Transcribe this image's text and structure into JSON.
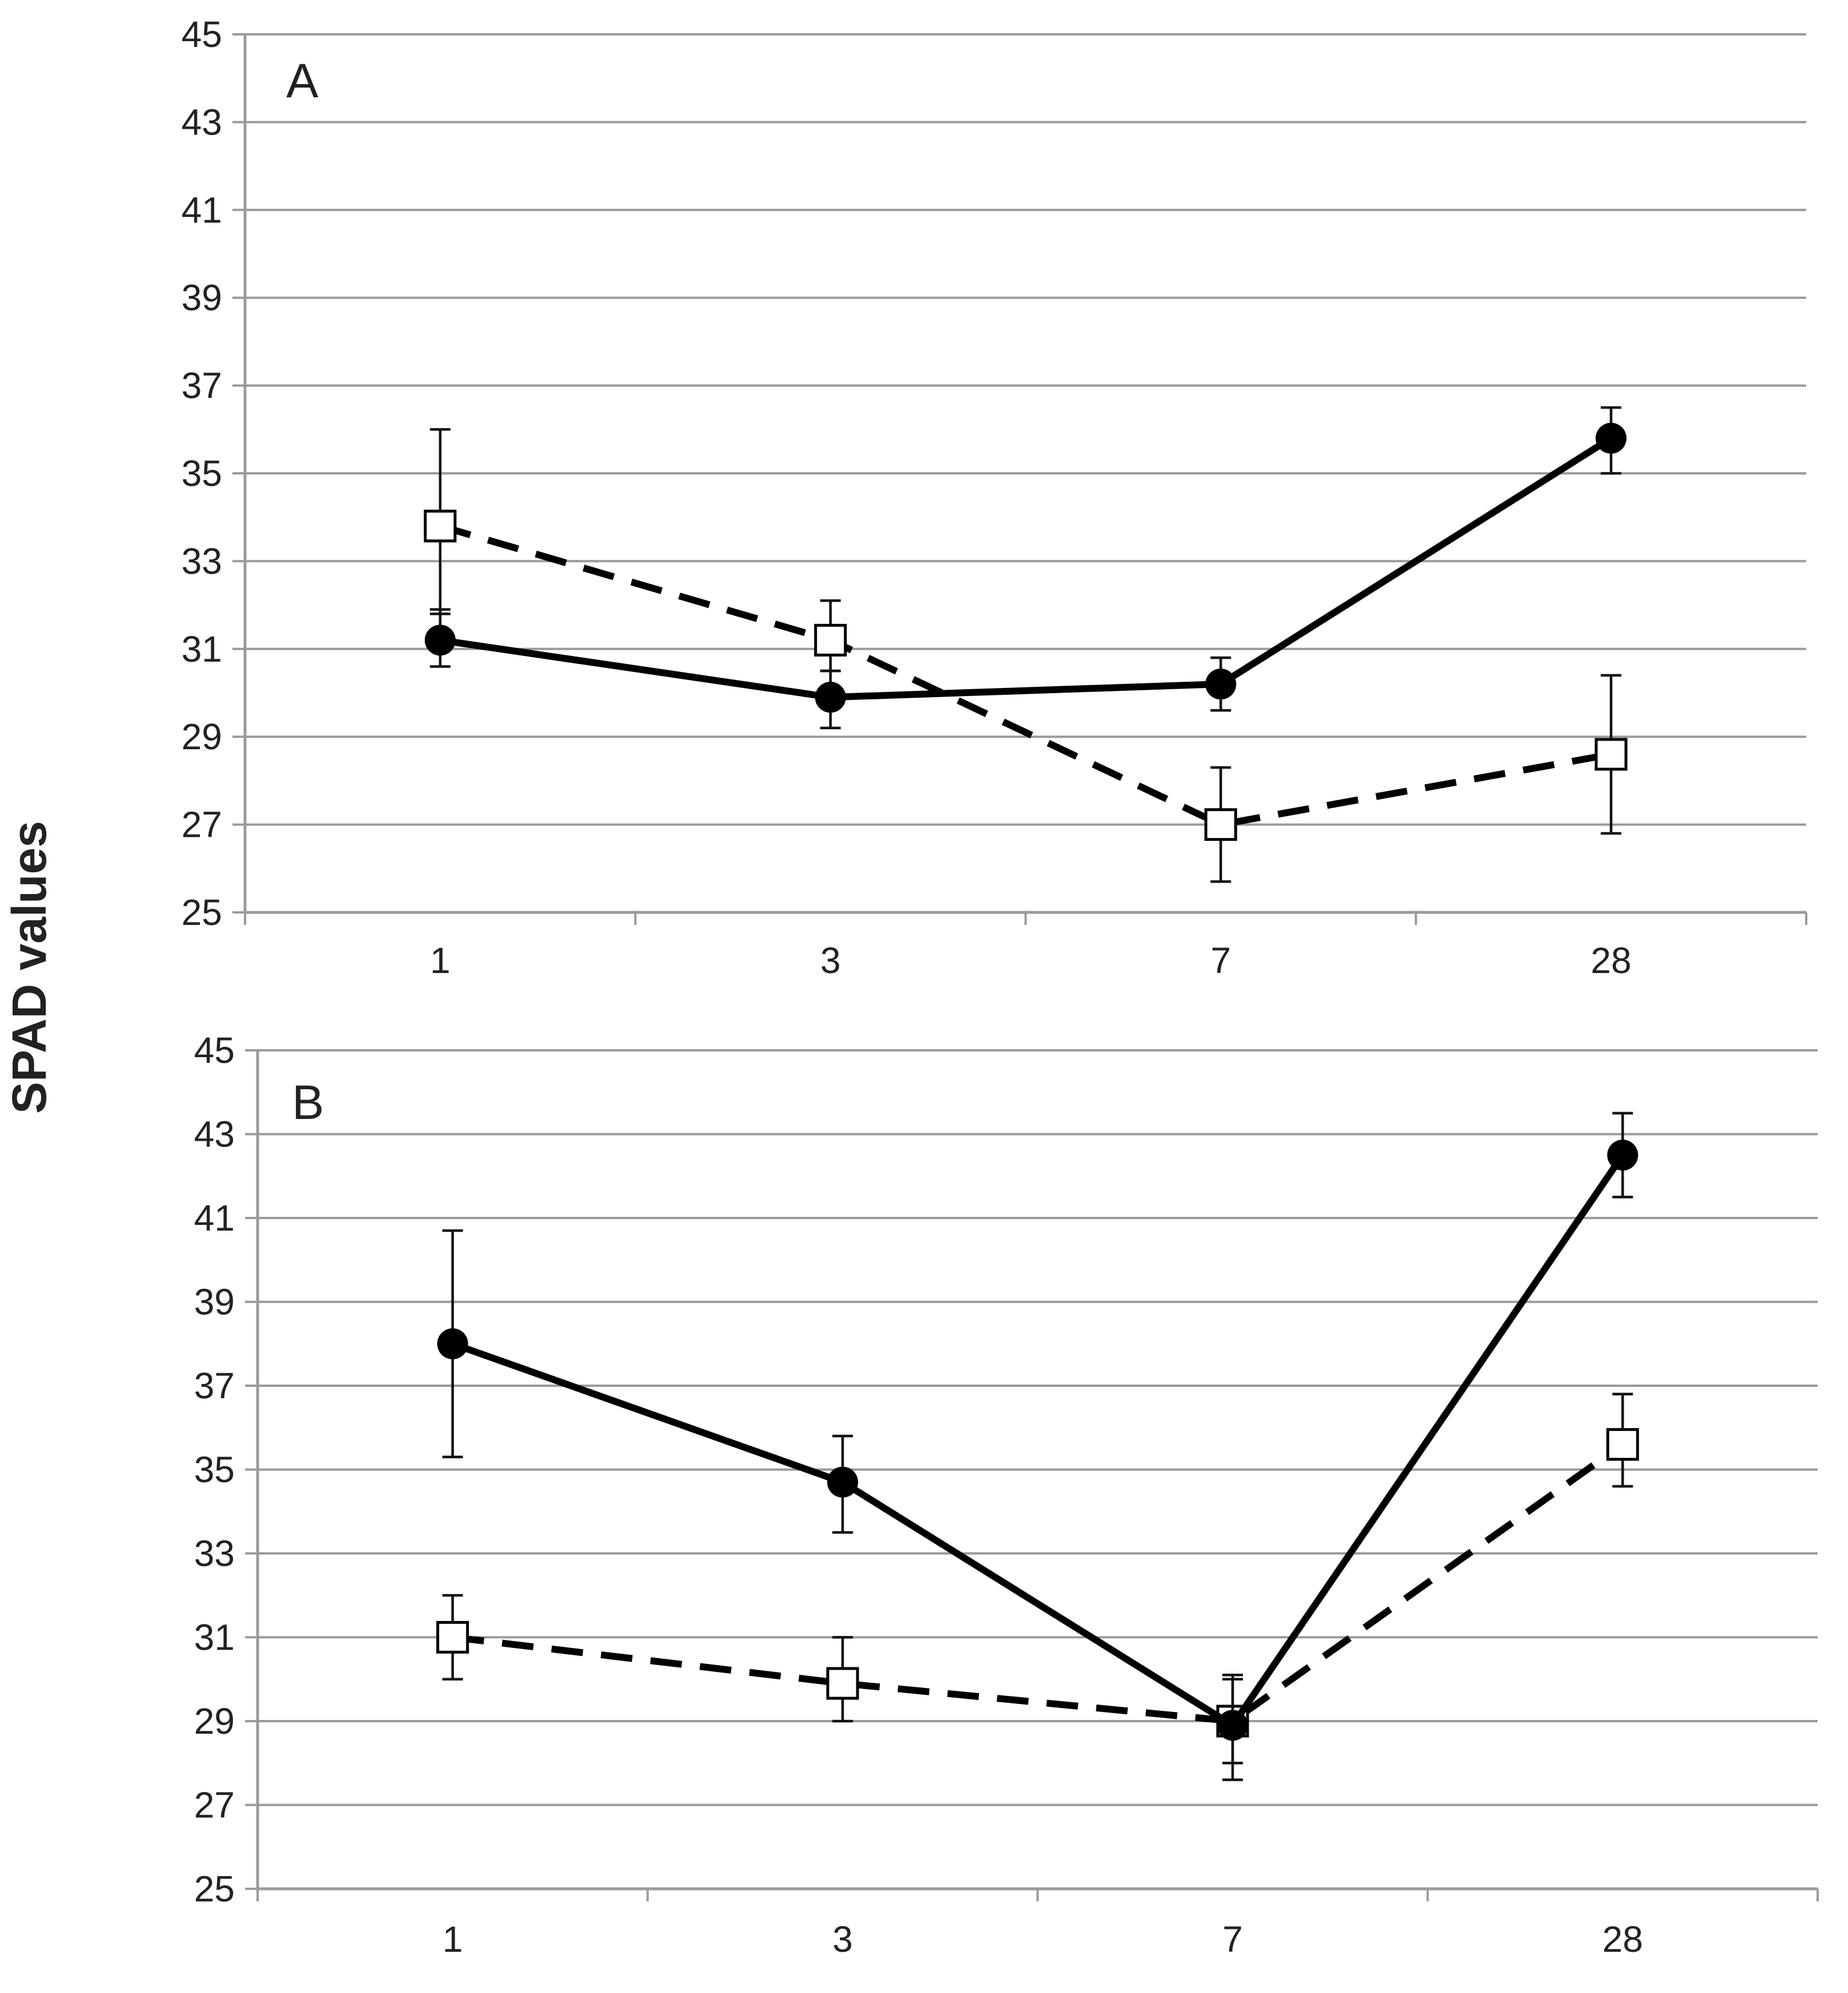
{
  "y_axis_title": "SPAD values",
  "chart_data": [
    {
      "type": "line",
      "panel_label": "A",
      "categories": [
        "1",
        "3",
        "7",
        "28"
      ],
      "ylim": [
        25,
        45
      ],
      "yticks": [
        25,
        27,
        29,
        31,
        33,
        35,
        37,
        39,
        41,
        43,
        45
      ],
      "grid": true,
      "series": [
        {
          "name": "solid-circles",
          "style": "solid",
          "marker": "circle",
          "values": [
            31.2,
            29.9,
            30.2,
            35.8
          ],
          "err_low": [
            30.6,
            29.2,
            29.6,
            35.0
          ],
          "err_high": [
            31.9,
            30.5,
            30.8,
            36.5
          ]
        },
        {
          "name": "dashed-squares",
          "style": "dashed",
          "marker": "square",
          "values": [
            33.8,
            31.2,
            27.0,
            28.6
          ],
          "err_low": [
            31.8,
            30.5,
            25.7,
            26.8
          ],
          "err_high": [
            36.0,
            32.1,
            28.3,
            30.4
          ]
        }
      ]
    },
    {
      "type": "line",
      "panel_label": "B",
      "categories": [
        "1",
        "3",
        "7",
        "28"
      ],
      "ylim": [
        25,
        45
      ],
      "yticks": [
        25,
        27,
        29,
        31,
        33,
        35,
        37,
        39,
        41,
        43,
        45
      ],
      "grid": true,
      "series": [
        {
          "name": "solid-circles",
          "style": "solid",
          "marker": "circle",
          "values": [
            38.0,
            34.7,
            28.9,
            42.5
          ],
          "err_low": [
            35.3,
            33.5,
            27.6,
            41.5
          ],
          "err_high": [
            40.7,
            35.8,
            30.1,
            43.5
          ]
        },
        {
          "name": "dashed-squares",
          "style": "dashed",
          "marker": "square",
          "values": [
            31.0,
            29.9,
            29.0,
            35.6
          ],
          "err_low": [
            30.0,
            29.0,
            28.0,
            34.6
          ],
          "err_high": [
            32.0,
            31.0,
            30.0,
            36.8
          ]
        }
      ]
    }
  ]
}
